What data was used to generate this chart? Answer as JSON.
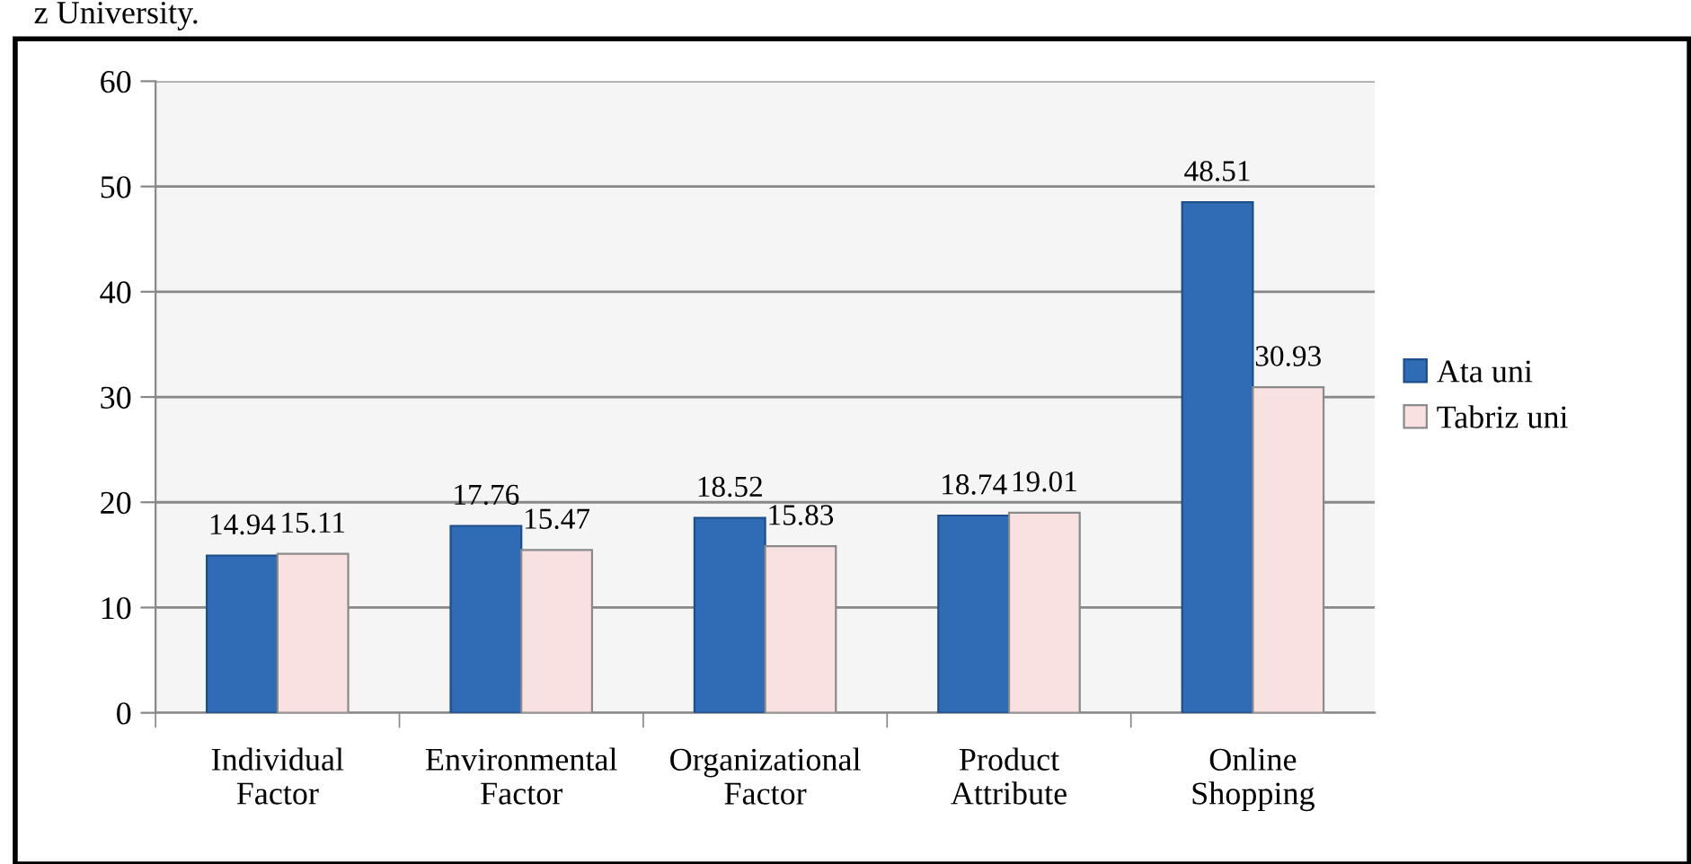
{
  "chart_data": {
    "type": "bar",
    "categories": [
      "Individual\nFactor",
      "Environmental\nFactor",
      "Organizational\nFactor",
      "Product\nAttribute",
      "Online\nShopping"
    ],
    "series": [
      {
        "name": "Ata uni",
        "color": "#2f6cb5",
        "values": [
          14.94,
          17.76,
          18.52,
          18.74,
          48.51
        ]
      },
      {
        "name": "Tabriz uni",
        "color": "#f9e1e1",
        "values": [
          15.11,
          15.47,
          15.83,
          19.01,
          30.93
        ]
      }
    ],
    "ylim": [
      0,
      60
    ],
    "yticks": [
      0,
      10,
      20,
      30,
      40,
      50,
      60
    ],
    "grid": "y",
    "legend": "right",
    "data_labels": true,
    "annotations": [
      "z University."
    ]
  }
}
